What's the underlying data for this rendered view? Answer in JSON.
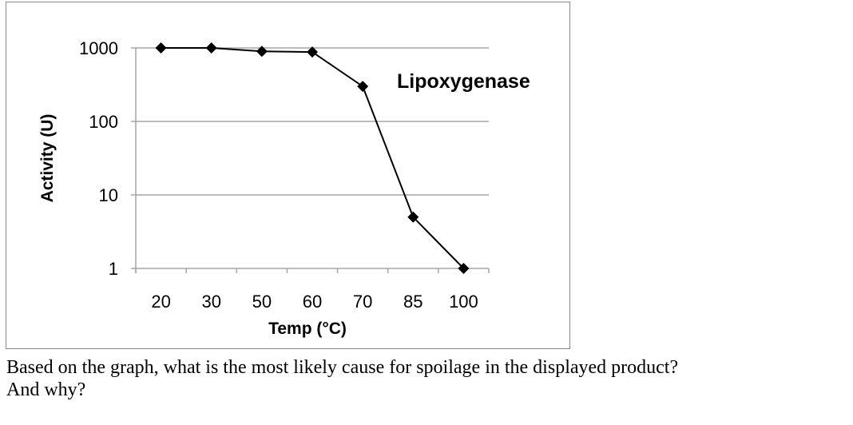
{
  "chart_data": {
    "type": "line",
    "title": "",
    "annotation": "Lipoxygenase",
    "xlabel": "Temp (°C)",
    "ylabel": "Activity (U)",
    "categories": [
      "20",
      "30",
      "50",
      "60",
      "70",
      "85",
      "100"
    ],
    "values": [
      1000,
      1000,
      900,
      880,
      300,
      5,
      1
    ],
    "yscale": "log",
    "ylim": [
      1,
      1000
    ],
    "yticks": [
      "1",
      "10",
      "100",
      "1000"
    ],
    "grid": "horizontal",
    "marker": "diamond",
    "colors": {
      "line": "#000000",
      "grid": "#a6a6a6",
      "frame": "#888888"
    }
  },
  "question": {
    "line1": "Based on the graph, what is the most likely cause for spoilage in the displayed product?",
    "line2": "And why?"
  }
}
